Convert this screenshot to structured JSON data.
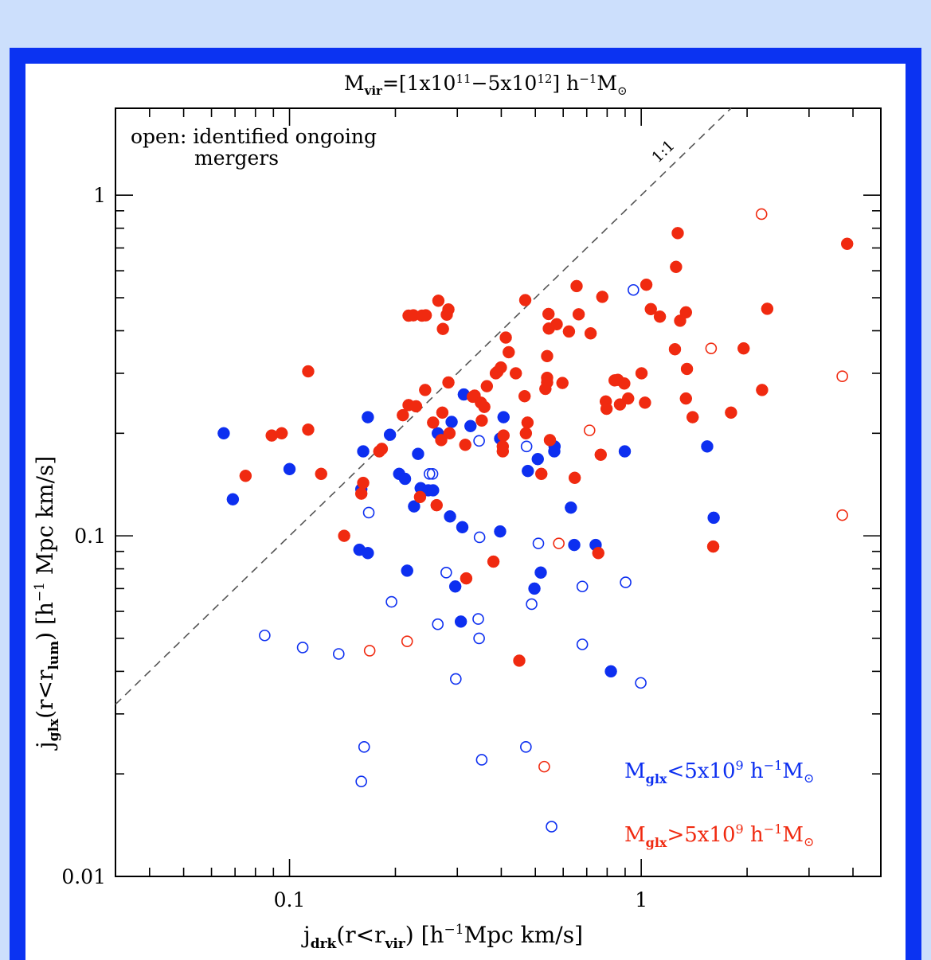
{
  "chart_data": {
    "type": "scatter",
    "title_main": "M",
    "title_sub": "vir",
    "title_rest": "=[1x10",
    "title_exp1": "11",
    "title_mid": "−5x10",
    "title_exp2": "12",
    "title_tail": "] h",
    "title_hexp": "−1",
    "title_unit": "M",
    "title_unit_sub": "⊙",
    "xlabel_main": "j",
    "xlabel_sub": "drk",
    "xlabel_mid": "(r<r",
    "xlabel_sub2": "vir",
    "xlabel_tail": ") [h",
    "xlabel_hexp": "−1",
    "xlabel_end": "Mpc km/s]",
    "ylabel_main": "j",
    "ylabel_sub": "glx",
    "ylabel_mid": "(r<r",
    "ylabel_sub2": "lum",
    "ylabel_tail": ") [h",
    "ylabel_hexp": "−1",
    "ylabel_end": " Mpc km/s]",
    "note_line1": "open: identified ongoing",
    "note_line2": "mergers",
    "diag_label": "1:1",
    "x_scale": "log",
    "y_scale": "log",
    "xlim": [
      0.032,
      4.8
    ],
    "ylim": [
      0.01,
      1.8
    ],
    "x_ticks": [
      {
        "value": 0.1,
        "label": "0.1"
      },
      {
        "value": 1,
        "label": "1"
      }
    ],
    "y_ticks": [
      {
        "value": 0.01,
        "label": "0.01"
      },
      {
        "value": 0.1,
        "label": "0.1"
      },
      {
        "value": 1,
        "label": "1"
      }
    ],
    "legend_placement": "bottom-right",
    "series": [
      {
        "name": "<5x10",
        "legend_prefix": "M",
        "legend_sub": "glx",
        "legend_exp": "9",
        "legend_tail": " h",
        "legend_hexp": "−1",
        "legend_unit": "M",
        "legend_unit_sub": "⊙",
        "color": "#0d2ff0",
        "filled": [
          [
            0.065,
            0.2
          ],
          [
            0.069,
            0.128
          ],
          [
            0.1,
            0.157
          ],
          [
            0.16,
            0.137
          ],
          [
            0.162,
            0.177
          ],
          [
            0.167,
            0.223
          ],
          [
            0.158,
            0.091
          ],
          [
            0.167,
            0.089
          ],
          [
            0.193,
            0.198
          ],
          [
            0.205,
            0.152
          ],
          [
            0.213,
            0.147
          ],
          [
            0.216,
            0.079
          ],
          [
            0.226,
            0.122
          ],
          [
            0.232,
            0.174
          ],
          [
            0.236,
            0.138
          ],
          [
            0.248,
            0.136
          ],
          [
            0.256,
            0.136
          ],
          [
            0.264,
            0.2
          ],
          [
            0.289,
            0.216
          ],
          [
            0.286,
            0.114
          ],
          [
            0.296,
            0.071
          ],
          [
            0.31,
            0.106
          ],
          [
            0.313,
            0.26
          ],
          [
            0.327,
            0.21
          ],
          [
            0.307,
            0.056
          ],
          [
            0.397,
            0.193
          ],
          [
            0.406,
            0.223
          ],
          [
            0.397,
            0.103
          ],
          [
            0.476,
            0.155
          ],
          [
            0.497,
            0.07
          ],
          [
            0.508,
            0.168
          ],
          [
            0.518,
            0.078
          ],
          [
            0.567,
            0.183
          ],
          [
            0.566,
            0.177
          ],
          [
            0.631,
            0.121
          ],
          [
            0.645,
            0.094
          ],
          [
            0.742,
            0.094
          ],
          [
            0.898,
            0.177
          ],
          [
            0.82,
            0.04
          ],
          [
            1.54,
            0.183
          ],
          [
            1.607,
            0.113
          ]
        ],
        "open": [
          [
            0.085,
            0.051
          ],
          [
            0.109,
            0.047
          ],
          [
            0.138,
            0.045
          ],
          [
            0.163,
            0.024
          ],
          [
            0.16,
            0.019
          ],
          [
            0.168,
            0.117
          ],
          [
            0.195,
            0.064
          ],
          [
            0.25,
            0.152
          ],
          [
            0.255,
            0.152
          ],
          [
            0.264,
            0.055
          ],
          [
            0.279,
            0.078
          ],
          [
            0.297,
            0.038
          ],
          [
            0.344,
            0.057
          ],
          [
            0.346,
            0.05
          ],
          [
            0.347,
            0.099
          ],
          [
            0.346,
            0.19
          ],
          [
            0.352,
            0.022
          ],
          [
            0.472,
            0.183
          ],
          [
            0.47,
            0.024
          ],
          [
            0.488,
            0.063
          ],
          [
            0.51,
            0.095
          ],
          [
            0.556,
            0.014
          ],
          [
            0.68,
            0.071
          ],
          [
            0.68,
            0.048
          ],
          [
            0.903,
            0.073
          ],
          [
            0.95,
            0.527
          ],
          [
            0.997,
            0.037
          ],
          [
            1.402,
            0.223
          ]
        ]
      },
      {
        "name": ">5x10",
        "legend_prefix": "M",
        "legend_sub": "glx",
        "legend_exp": "9",
        "legend_tail": " h",
        "legend_hexp": "−1",
        "legend_unit": "M",
        "legend_unit_sub": "⊙",
        "color": "#f02a10",
        "filled": [
          [
            0.075,
            0.15
          ],
          [
            0.089,
            0.197
          ],
          [
            0.095,
            0.2
          ],
          [
            0.113,
            0.205
          ],
          [
            0.113,
            0.304
          ],
          [
            0.123,
            0.152
          ],
          [
            0.143,
            0.1
          ],
          [
            0.16,
            0.133
          ],
          [
            0.162,
            0.143
          ],
          [
            0.183,
            0.18
          ],
          [
            0.18,
            0.177
          ],
          [
            0.21,
            0.226
          ],
          [
            0.218,
            0.443
          ],
          [
            0.218,
            0.242
          ],
          [
            0.225,
            0.444
          ],
          [
            0.229,
            0.24
          ],
          [
            0.238,
            0.443
          ],
          [
            0.235,
            0.13
          ],
          [
            0.244,
            0.444
          ],
          [
            0.243,
            0.268
          ],
          [
            0.256,
            0.215
          ],
          [
            0.265,
            0.49
          ],
          [
            0.262,
            0.123
          ],
          [
            0.272,
            0.23
          ],
          [
            0.27,
            0.191
          ],
          [
            0.273,
            0.405
          ],
          [
            0.28,
            0.446
          ],
          [
            0.283,
            0.462
          ],
          [
            0.283,
            0.282
          ],
          [
            0.285,
            0.2
          ],
          [
            0.316,
            0.185
          ],
          [
            0.318,
            0.075
          ],
          [
            0.332,
            0.256
          ],
          [
            0.336,
            0.258
          ],
          [
            0.35,
            0.246
          ],
          [
            0.352,
            0.218
          ],
          [
            0.358,
            0.239
          ],
          [
            0.364,
            0.275
          ],
          [
            0.38,
            0.084
          ],
          [
            0.386,
            0.3
          ],
          [
            0.39,
            0.303
          ],
          [
            0.399,
            0.312
          ],
          [
            0.404,
            0.183
          ],
          [
            0.404,
            0.177
          ],
          [
            0.406,
            0.197
          ],
          [
            0.412,
            0.382
          ],
          [
            0.42,
            0.346
          ],
          [
            0.44,
            0.3
          ],
          [
            0.45,
            0.043
          ],
          [
            0.466,
            0.257
          ],
          [
            0.475,
            0.215
          ],
          [
            0.47,
            0.2
          ],
          [
            0.468,
            0.492
          ],
          [
            0.52,
            0.152
          ],
          [
            0.534,
            0.27
          ],
          [
            0.545,
            0.448
          ],
          [
            0.546,
            0.406
          ],
          [
            0.54,
            0.291
          ],
          [
            0.54,
            0.337
          ],
          [
            0.54,
            0.282
          ],
          [
            0.55,
            0.191
          ],
          [
            0.575,
            0.418
          ],
          [
            0.597,
            0.281
          ],
          [
            0.623,
            0.398
          ],
          [
            0.647,
            0.148
          ],
          [
            0.655,
            0.541
          ],
          [
            0.664,
            0.447
          ],
          [
            0.718,
            0.393
          ],
          [
            0.755,
            0.089
          ],
          [
            0.767,
            0.173
          ],
          [
            0.775,
            0.503
          ],
          [
            0.793,
            0.248
          ],
          [
            0.797,
            0.236
          ],
          [
            0.84,
            0.286
          ],
          [
            0.858,
            0.287
          ],
          [
            0.87,
            0.243
          ],
          [
            0.895,
            0.28
          ],
          [
            0.918,
            0.253
          ],
          [
            1.002,
            0.3
          ],
          [
            1.025,
            0.246
          ],
          [
            1.034,
            0.546
          ],
          [
            1.065,
            0.463
          ],
          [
            1.13,
            0.44
          ],
          [
            1.247,
            0.353
          ],
          [
            1.256,
            0.616
          ],
          [
            1.27,
            0.774
          ],
          [
            1.29,
            0.428
          ],
          [
            1.34,
            0.453
          ],
          [
            1.349,
            0.309
          ],
          [
            1.34,
            0.253
          ],
          [
            1.4,
            0.223
          ],
          [
            1.602,
            0.093
          ],
          [
            1.8,
            0.23
          ],
          [
            1.955,
            0.355
          ],
          [
            2.206,
            0.268
          ],
          [
            2.282,
            0.464
          ],
          [
            3.85,
            0.72
          ]
        ],
        "open": [
          [
            0.169,
            0.046
          ],
          [
            0.216,
            0.049
          ],
          [
            0.53,
            0.021
          ],
          [
            0.583,
            0.095
          ],
          [
            0.713,
            0.204
          ],
          [
            1.58,
            0.355
          ],
          [
            2.198,
            0.88
          ],
          [
            3.73,
            0.294
          ],
          [
            3.73,
            0.115
          ]
        ]
      }
    ]
  }
}
